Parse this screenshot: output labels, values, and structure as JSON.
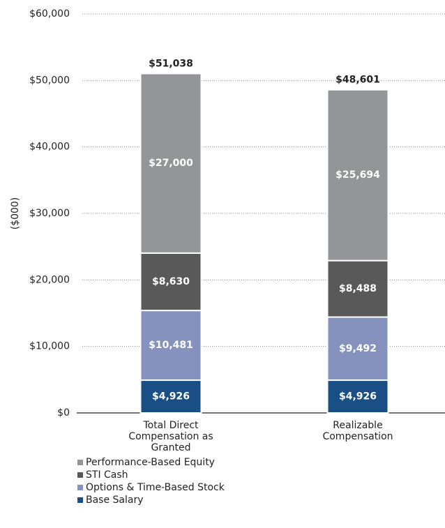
{
  "chart_data": {
    "type": "stacked_bar",
    "y_label": "($000)",
    "categories": [
      "Total Direct Compensation as Granted",
      "Realizable Compensation"
    ],
    "series": [
      {
        "name": "Base Salary",
        "color": "#1a4f85",
        "values": [
          4926,
          4926
        ],
        "value_labels": [
          "$4,926",
          "$4,926"
        ]
      },
      {
        "name": "Options & Time-Based Stock",
        "color": "#8592bd",
        "values": [
          10481,
          9492
        ],
        "value_labels": [
          "$10,481",
          "$9,492"
        ]
      },
      {
        "name": "STI Cash",
        "color": "#595959",
        "values": [
          8630,
          8488
        ],
        "value_labels": [
          "$8,630",
          "$8,488"
        ]
      },
      {
        "name": "Performance-Based Equity",
        "color": "#939598",
        "values": [
          27000,
          25694
        ],
        "value_labels": [
          "$27,000",
          "$25,694"
        ]
      }
    ],
    "totals": [
      51038,
      48601
    ],
    "total_labels": [
      "$51,038",
      "$48,601"
    ],
    "ylim": [
      0,
      60000
    ],
    "yticks": [
      {
        "value": 0,
        "label": "$0"
      },
      {
        "value": 10000,
        "label": "$10,000"
      },
      {
        "value": 20000,
        "label": "$20,000"
      },
      {
        "value": 30000,
        "label": "$30,000"
      },
      {
        "value": 40000,
        "label": "$40,000"
      },
      {
        "value": 50000,
        "label": "$50,000"
      },
      {
        "value": 60000,
        "label": "$60,000"
      }
    ],
    "grid": true
  }
}
